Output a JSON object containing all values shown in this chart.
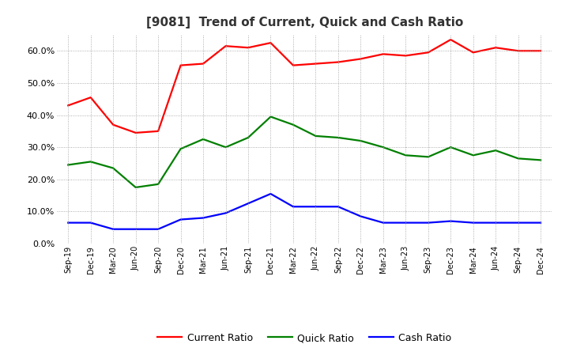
{
  "title": "[9081]  Trend of Current, Quick and Cash Ratio",
  "x_labels": [
    "Sep-19",
    "Dec-19",
    "Mar-20",
    "Jun-20",
    "Sep-20",
    "Dec-20",
    "Mar-21",
    "Jun-21",
    "Sep-21",
    "Dec-21",
    "Mar-22",
    "Jun-22",
    "Sep-22",
    "Dec-22",
    "Mar-23",
    "Jun-23",
    "Sep-23",
    "Dec-23",
    "Mar-24",
    "Jun-24",
    "Sep-24",
    "Dec-24"
  ],
  "current_ratio": [
    43.0,
    45.5,
    37.0,
    34.5,
    35.0,
    55.5,
    56.0,
    61.5,
    61.0,
    62.5,
    55.5,
    56.0,
    56.5,
    57.5,
    59.0,
    58.5,
    59.5,
    63.5,
    59.5,
    61.0,
    60.0,
    60.0
  ],
  "quick_ratio": [
    24.5,
    25.5,
    23.5,
    17.5,
    18.5,
    29.5,
    32.5,
    30.0,
    33.0,
    39.5,
    37.0,
    33.5,
    33.0,
    32.0,
    30.0,
    27.5,
    27.0,
    30.0,
    27.5,
    29.0,
    26.5,
    26.0
  ],
  "cash_ratio": [
    6.5,
    6.5,
    4.5,
    4.5,
    4.5,
    7.5,
    8.0,
    9.5,
    12.5,
    15.5,
    11.5,
    11.5,
    11.5,
    8.5,
    6.5,
    6.5,
    6.5,
    7.0,
    6.5,
    6.5,
    6.5,
    6.5
  ],
  "current_color": "#FF0000",
  "quick_color": "#008000",
  "cash_color": "#0000FF",
  "ylim": [
    0,
    65
  ],
  "yticks": [
    0,
    10,
    20,
    30,
    40,
    50,
    60
  ],
  "ytick_labels": [
    "0.0%",
    "10.0%",
    "20.0%",
    "30.0%",
    "40.0%",
    "50.0%",
    "60.0%"
  ],
  "background_color": "#FFFFFF",
  "plot_bg_color": "#FFFFFF",
  "grid_color": "#999999",
  "legend_labels": [
    "Current Ratio",
    "Quick Ratio",
    "Cash Ratio"
  ],
  "line_width": 1.6
}
